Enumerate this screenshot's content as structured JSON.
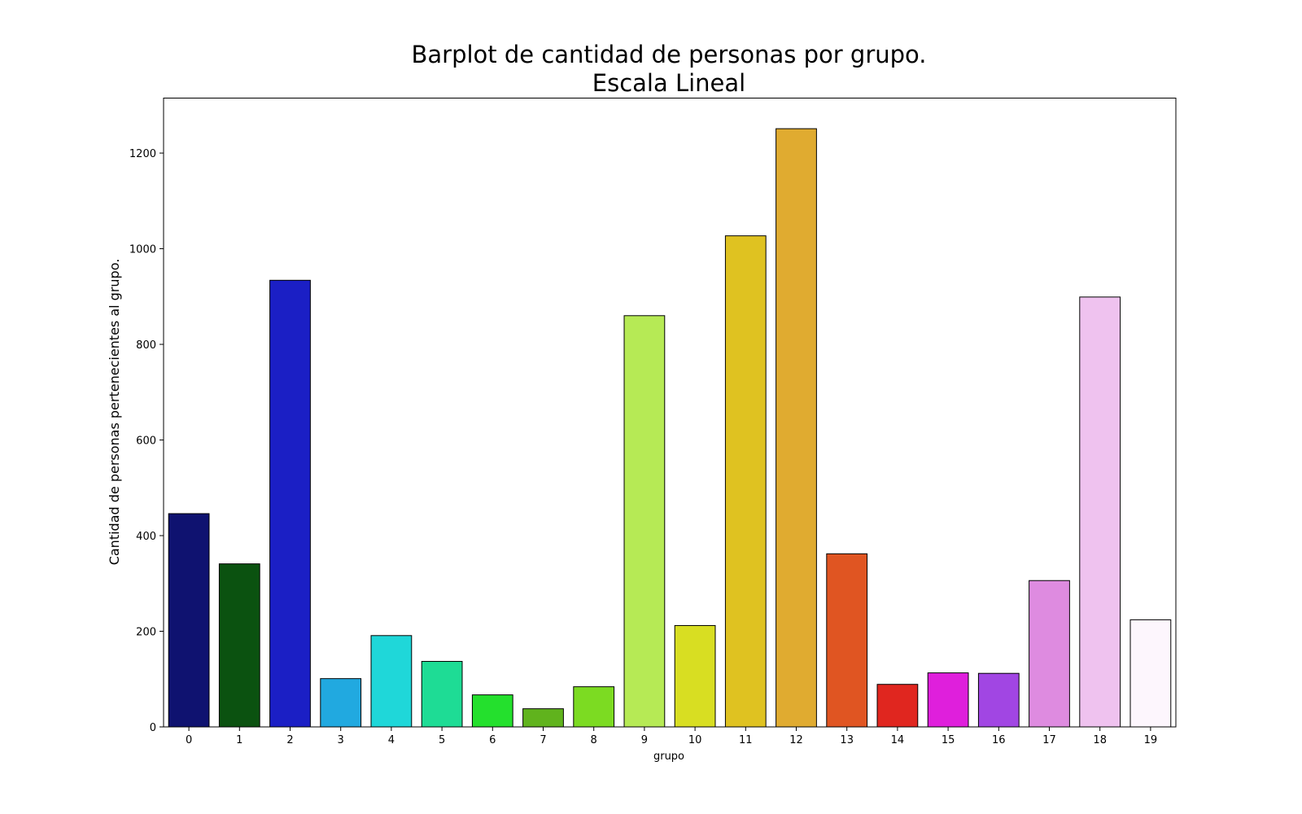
{
  "chart_data": {
    "type": "bar",
    "title": "Barplot de cantidad de personas por grupo.",
    "subtitle": "Escala Lineal",
    "xlabel": "grupo",
    "ylabel": "Cantidad de personas pertenecientes al grupo.",
    "ylim": [
      0,
      1315
    ],
    "yticks": [
      0,
      200,
      400,
      600,
      800,
      1000,
      1200
    ],
    "grid": false,
    "categories": [
      "0",
      "1",
      "2",
      "3",
      "4",
      "5",
      "6",
      "7",
      "8",
      "9",
      "10",
      "11",
      "12",
      "13",
      "14",
      "15",
      "16",
      "17",
      "18",
      "19"
    ],
    "values": [
      446,
      341,
      934,
      101,
      191,
      137,
      67,
      38,
      84,
      860,
      212,
      1027,
      1251,
      362,
      89,
      113,
      112,
      306,
      899,
      224
    ],
    "colors": [
      "#0f1270",
      "#0b5210",
      "#1b1fc5",
      "#21a9e0",
      "#1fd7d9",
      "#1edc95",
      "#24e02d",
      "#60b31d",
      "#7cdb22",
      "#b6ea55",
      "#d8de22",
      "#dfc221",
      "#e0ab30",
      "#e05522",
      "#e0261f",
      "#df1fdc",
      "#a146e3",
      "#de8be0",
      "#efc2ef",
      "#fdf6fd"
    ]
  }
}
